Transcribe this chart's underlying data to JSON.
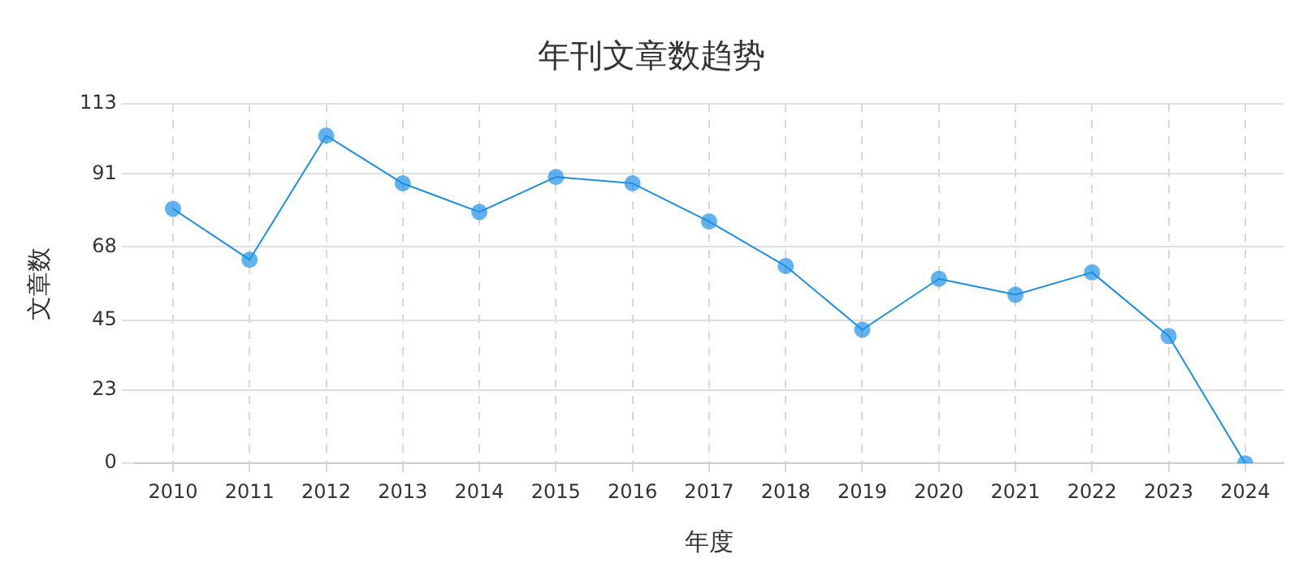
{
  "chart_data": {
    "type": "line",
    "title": "年刊文章数趋势",
    "xlabel": "年度",
    "ylabel": "文章数",
    "categories": [
      "2010",
      "2011",
      "2012",
      "2013",
      "2014",
      "2015",
      "2016",
      "2017",
      "2018",
      "2019",
      "2020",
      "2021",
      "2022",
      "2023",
      "2024"
    ],
    "series": [
      {
        "color": "#1a8fe8",
        "values": [
          80,
          64,
          103,
          88,
          79,
          90,
          88,
          76,
          62,
          42,
          58,
          53,
          60,
          40,
          0
        ]
      }
    ],
    "ylim": [
      0,
      113
    ],
    "yticks": [
      0,
      23,
      45,
      68,
      91,
      113
    ],
    "grid": true,
    "legend": false,
    "marker": "circle",
    "line_style": "solid"
  }
}
